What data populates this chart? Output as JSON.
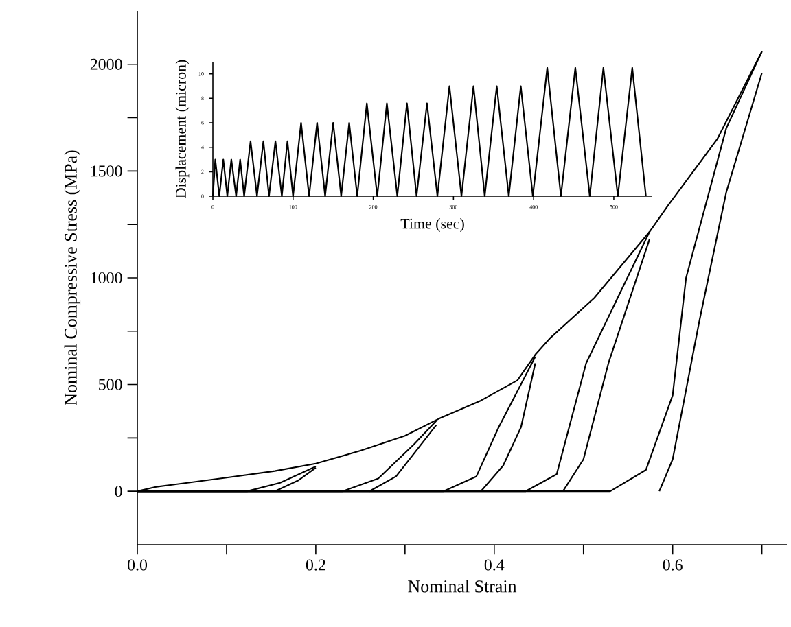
{
  "chart_data": [
    {
      "type": "line",
      "xlabel": "Nominal Strain",
      "ylabel": "Nominal Compressive Stress (MPa)",
      "xlim": [
        0,
        0.728
      ],
      "ylim": [
        -250,
        2250
      ],
      "xticks": [
        {
          "value": 0,
          "label": "0.0"
        },
        {
          "value": 0.1,
          "label": null
        },
        0.2,
        {
          "value": 0.3,
          "label": null
        },
        0.4,
        {
          "value": 0.5,
          "label": null
        },
        0.6,
        {
          "value": 0.7,
          "label": null
        }
      ],
      "yticks": [
        0,
        {
          "value": 250,
          "label": null
        },
        500,
        {
          "value": 750,
          "label": null
        },
        1000,
        {
          "value": 1250,
          "label": null
        },
        1500,
        {
          "value": 1750,
          "label": null
        },
        2000
      ],
      "grid": false,
      "legend": false,
      "marker": "none",
      "line_style": "solid",
      "series": [
        {
          "color": "#000000",
          "x": [
            0,
            0.02,
            0.1,
            0.154,
            0.2,
            0.25,
            0.3,
            0.338,
            0.385,
            0.426,
            0.446,
            0.462,
            0.512,
            0.574,
            0.595,
            0.65,
            0.7
          ],
          "values": [
            0,
            20,
            64,
            95,
            130,
            190,
            260,
            340,
            425,
            520,
            640,
            715,
            905,
            1215,
            1340,
            1650,
            2060
          ]
        },
        {
          "color": "#000000",
          "x": [
            0,
            0.123,
            0.16,
            0.2
          ],
          "values": [
            0,
            0,
            40,
            116
          ]
        },
        {
          "color": "#000000",
          "x": [
            0.154,
            0.18,
            0.2
          ],
          "values": [
            0,
            50,
            110
          ]
        },
        {
          "color": "#000000",
          "x": [
            0,
            0.23,
            0.27,
            0.31,
            0.335
          ],
          "values": [
            0,
            0,
            60,
            220,
            330
          ]
        },
        {
          "color": "#000000",
          "x": [
            0.26,
            0.29,
            0.32,
            0.335
          ],
          "values": [
            0,
            70,
            230,
            310
          ]
        },
        {
          "color": "#000000",
          "x": [
            0,
            0.343,
            0.38,
            0.405,
            0.446
          ],
          "values": [
            0,
            0,
            70,
            300,
            630
          ]
        },
        {
          "color": "#000000",
          "x": [
            0.385,
            0.41,
            0.43,
            0.446
          ],
          "values": [
            0,
            120,
            300,
            600
          ]
        },
        {
          "color": "#000000",
          "x": [
            0,
            0.435,
            0.47,
            0.503,
            0.574
          ],
          "values": [
            0,
            0,
            80,
            600,
            1215
          ]
        },
        {
          "color": "#000000",
          "x": [
            0.477,
            0.5,
            0.528,
            0.574
          ],
          "values": [
            0,
            150,
            600,
            1180
          ]
        },
        {
          "color": "#000000",
          "x": [
            0,
            0.53,
            0.57,
            0.6,
            0.615,
            0.66,
            0.7
          ],
          "values": [
            0,
            0,
            100,
            450,
            1000,
            1700,
            2060
          ]
        },
        {
          "color": "#000000",
          "x": [
            0.585,
            0.6,
            0.63,
            0.66,
            0.7
          ],
          "values": [
            0,
            150,
            800,
            1400,
            1960
          ]
        }
      ]
    },
    {
      "type": "line",
      "xlabel": "Time (sec)",
      "ylabel": "Displacement (micron)",
      "xlim": [
        0,
        548
      ],
      "ylim": [
        0,
        11
      ],
      "xticks": [
        0,
        100,
        200,
        300,
        400,
        500
      ],
      "yticks": [
        0,
        2,
        4,
        6,
        8,
        10
      ],
      "grid": false,
      "legend": false,
      "marker": "none",
      "line_style": "solid",
      "series": [
        {
          "color": "#000000",
          "x": [
            0,
            3,
            8,
            13,
            18,
            23,
            29,
            34,
            39,
            47,
            55,
            63,
            70,
            78,
            86,
            93,
            100,
            110,
            120,
            130,
            140,
            150,
            160,
            170,
            180,
            192,
            205,
            217,
            230,
            242,
            254,
            267,
            280,
            295,
            310,
            325,
            339,
            354,
            369,
            384,
            399,
            417,
            434,
            452,
            470,
            487,
            505,
            523,
            540
          ],
          "values": [
            0,
            3,
            0,
            3,
            0,
            3,
            0,
            3,
            0,
            4.5,
            0,
            4.5,
            0,
            4.5,
            0,
            4.5,
            0,
            6,
            0,
            6,
            0,
            6,
            0,
            6,
            0,
            7.6,
            0,
            7.6,
            0,
            7.6,
            0,
            7.6,
            0,
            9,
            0,
            9,
            0,
            9,
            0,
            9,
            0,
            10.5,
            0,
            10.5,
            0,
            10.5,
            0,
            10.5,
            0
          ]
        }
      ]
    }
  ]
}
